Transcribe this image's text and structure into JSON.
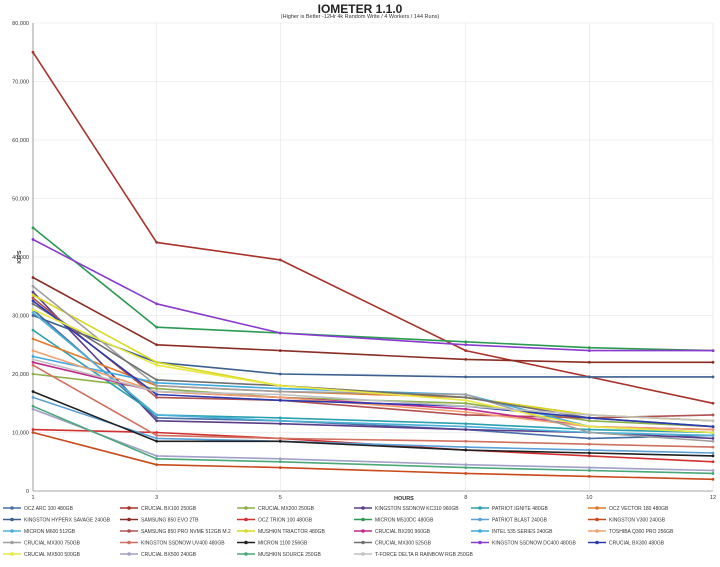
{
  "chart_data": {
    "type": "line",
    "title": "IOMETER 1.1.0",
    "subtitle": "(Higher is Better -12Hr 4k Random Write / 4 Workers / 144 Runs)",
    "xlabel": "HOURS",
    "ylabel": "IOPS",
    "x": [
      1,
      3,
      5,
      8,
      10,
      12
    ],
    "xticks": [
      "1",
      "3",
      "5",
      "8",
      "10",
      "12"
    ],
    "ylim": [
      0,
      80000
    ],
    "yticks": [
      "0",
      "10,000",
      "20,000",
      "30,000",
      "40,000",
      "50,000",
      "60,000",
      "70,000",
      "80,000"
    ],
    "grid": true,
    "legend_position": "bottom",
    "series": [
      {
        "name": "OCZ ARC 100 480GB",
        "color": "#4a6fa5",
        "values": [
          31000,
          12500,
          12000,
          10500,
          9000,
          9500
        ]
      },
      {
        "name": "CRUCIAL BX100 250GB",
        "color": "#a8322a",
        "values": [
          75000,
          42500,
          39500,
          24000,
          19500,
          15000
        ]
      },
      {
        "name": "CRUCIAL MX200 250GB",
        "color": "#8cb04a",
        "values": [
          20000,
          17500,
          16000,
          15000,
          12000,
          11000
        ]
      },
      {
        "name": "KINGSTON SSDNOW KC310 960GB",
        "color": "#5a3d8a",
        "values": [
          34000,
          12000,
          11500,
          10500,
          10000,
          9000
        ]
      },
      {
        "name": "PATRIOT IGNITE 480GB",
        "color": "#2aa0b0",
        "values": [
          27500,
          13000,
          12500,
          11500,
          10500,
          10000
        ]
      },
      {
        "name": "OCZ VECTOR 180 480GB",
        "color": "#e07a2c",
        "values": [
          26000,
          18000,
          17000,
          16000,
          13000,
          12000
        ]
      },
      {
        "name": "KINGSTON HYPERX SAVAGE 240GB",
        "color": "#3d5f8f",
        "values": [
          30000,
          22000,
          20000,
          19500,
          19500,
          19500
        ]
      },
      {
        "name": "SAMSUNG 850 EVO 2TB",
        "color": "#8a2d24",
        "values": [
          36500,
          25000,
          24000,
          22500,
          22000,
          22000
        ]
      },
      {
        "name": "OCZ TRION 100 480GB",
        "color": "#d03030",
        "values": [
          10500,
          10000,
          9000,
          7000,
          6000,
          5000
        ]
      },
      {
        "name": "MICRON M510DC 480GB",
        "color": "#2a9a50",
        "values": [
          45000,
          28000,
          27000,
          25500,
          24500,
          24000
        ]
      },
      {
        "name": "PATRIOT BLAST 240GB",
        "color": "#5aa0d8",
        "values": [
          16000,
          9000,
          8500,
          7500,
          7000,
          6500
        ]
      },
      {
        "name": "KINGSTON V300 240GB",
        "color": "#c84a1a",
        "values": [
          10000,
          4500,
          4000,
          3000,
          2500,
          2000
        ]
      },
      {
        "name": "MICRON M600 512GB",
        "color": "#4ab0d8",
        "values": [
          30500,
          13000,
          12000,
          11000,
          10000,
          9500
        ]
      },
      {
        "name": "SAMSUNG 850 PRO NVME 512GB M.2",
        "color": "#b05050",
        "values": [
          33000,
          16000,
          15500,
          13000,
          12500,
          13000
        ]
      },
      {
        "name": "MUSHKIN TRIACTOR 480GB",
        "color": "#d8d820",
        "values": [
          33500,
          22000,
          18000,
          16000,
          13000,
          12000
        ]
      },
      {
        "name": "CRUCIAL BX200 960GB",
        "color": "#c02a8a",
        "values": [
          22000,
          17000,
          16000,
          14000,
          11000,
          10500
        ]
      },
      {
        "name": "INTEL 535 SERIES 240GB",
        "color": "#40a8e0",
        "values": [
          23000,
          18500,
          17500,
          16500,
          11000,
          10000
        ]
      },
      {
        "name": "TOSHIBA Q300 PRO 256GB",
        "color": "#f0a070",
        "values": [
          24000,
          17000,
          16000,
          13500,
          11000,
          10500
        ]
      },
      {
        "name": "CRUCIAL MX300 750GB",
        "color": "#a0a0a0",
        "values": [
          35000,
          18000,
          17000,
          16500,
          10000,
          8500
        ]
      },
      {
        "name": "KINGSTON SSDNOW UV400 480GB",
        "color": "#d07060",
        "values": [
          21500,
          9500,
          9000,
          8500,
          8000,
          7500
        ]
      },
      {
        "name": "MICRON 1100 256GB",
        "color": "#202020",
        "values": [
          17000,
          8500,
          8500,
          7000,
          6500,
          6000
        ]
      },
      {
        "name": "CRUCIAL MX300 525GB",
        "color": "#707070",
        "values": [
          32000,
          19000,
          18000,
          16000,
          12500,
          11000
        ]
      },
      {
        "name": "KINGSTON SSDNOW DC400 480GB",
        "color": "#8a3ad0",
        "values": [
          43000,
          32000,
          27000,
          25000,
          24000,
          24000
        ]
      },
      {
        "name": "CRUCIAL BX300 480GB",
        "color": "#2a3ab0",
        "values": [
          32500,
          16500,
          15500,
          14500,
          12500,
          11000
        ]
      },
      {
        "name": "CRUCIAL MX500 500GB",
        "color": "#e8e840",
        "values": [
          31000,
          21500,
          18000,
          15500,
          11000,
          10000
        ]
      },
      {
        "name": "CRUCIAL BX500 240GB",
        "color": "#a0a0c8",
        "values": [
          14000,
          6000,
          5500,
          4500,
          4000,
          3500
        ]
      },
      {
        "name": "MUSHKIN SOURCE 250GB",
        "color": "#48a878",
        "values": [
          14500,
          5500,
          5000,
          4000,
          3500,
          3000
        ]
      },
      {
        "name": "T-FORCE DELTA R RAINBOW RGB 250GB",
        "color": "#c0c0c0",
        "values": [
          22500,
          17000,
          16500,
          14500,
          13000,
          12000
        ]
      }
    ]
  }
}
